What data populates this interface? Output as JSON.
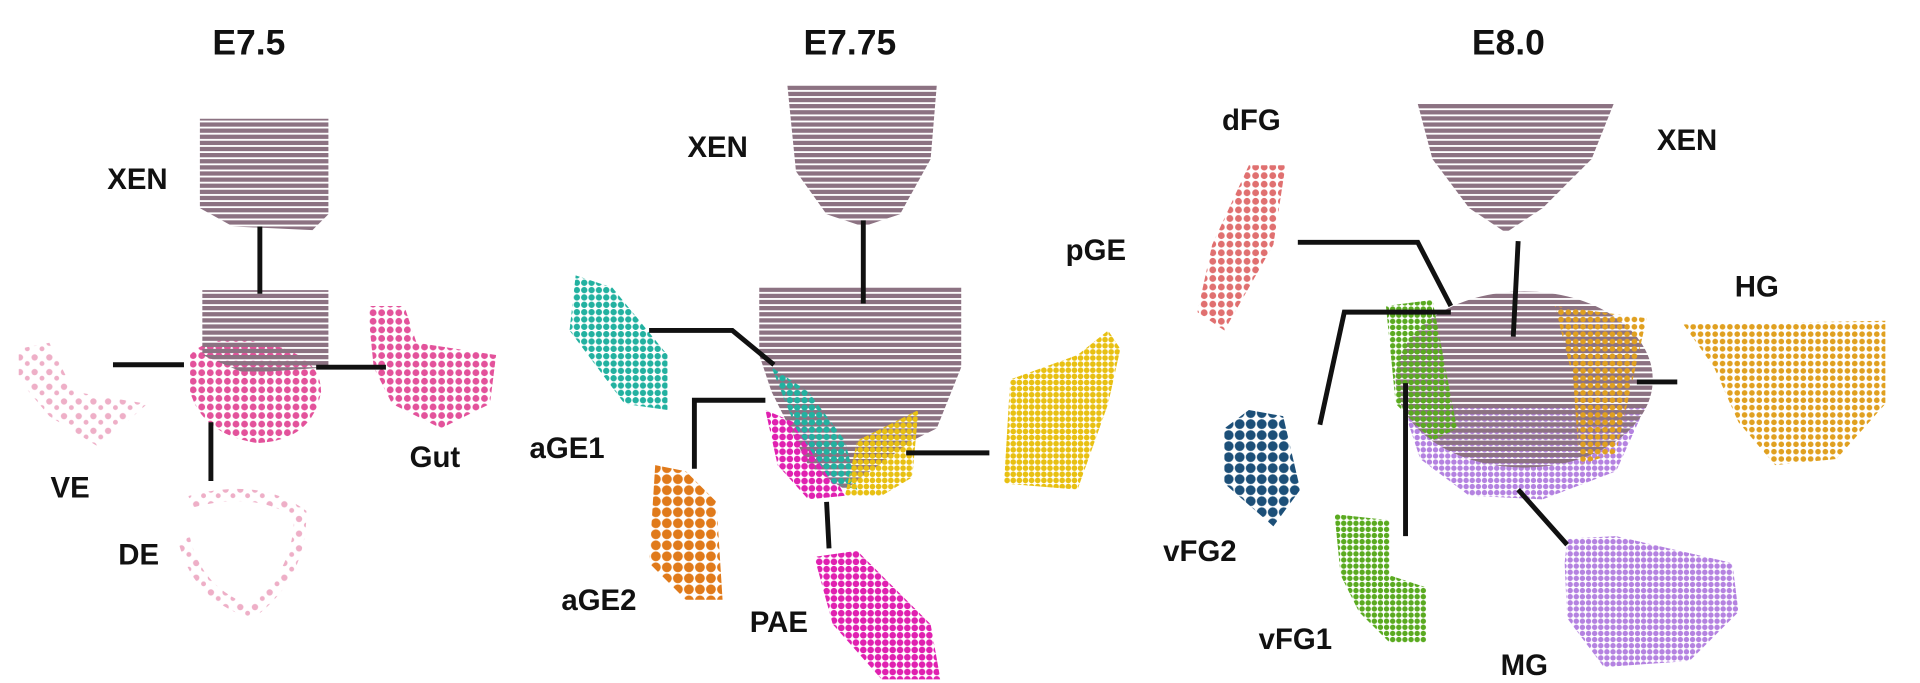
{
  "panels": [
    {
      "title": "E7.5",
      "labels": [
        "XEN",
        "VE",
        "DE",
        "Gut"
      ]
    },
    {
      "title": "E7.75",
      "labels": [
        "XEN",
        "pGE",
        "aGE1",
        "aGE2",
        "PAE"
      ]
    },
    {
      "title": "E8.0",
      "labels": [
        "dFG",
        "XEN",
        "HG",
        "vFG2",
        "vFG1",
        "MG"
      ]
    }
  ]
}
